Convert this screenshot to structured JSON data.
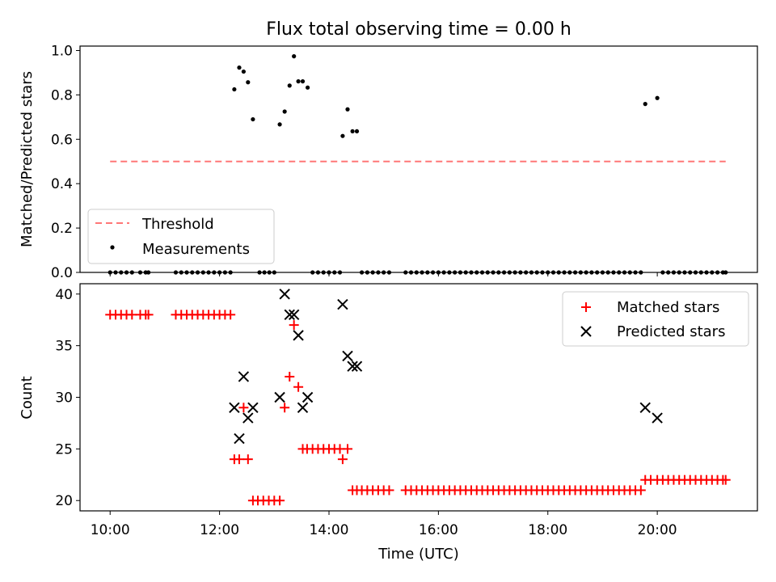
{
  "title": "Flux total observing time = 0.00 h",
  "chart_data": [
    {
      "type": "scatter",
      "ylabel": "Matched/Predicted stars",
      "xlabel": "",
      "xlim": [
        9.45,
        21.83
      ],
      "ylim": [
        0,
        1.02
      ],
      "yticks": [
        0.0,
        0.2,
        0.4,
        0.6,
        0.8,
        1.0
      ],
      "ytick_labels": [
        "0.0",
        "0.2",
        "0.4",
        "0.6",
        "0.8",
        "1.0"
      ],
      "xticks": [
        10,
        12,
        14,
        16,
        18,
        20
      ],
      "legend_position": "lower-left",
      "legend": [
        "Threshold",
        "Measurements"
      ],
      "series": [
        {
          "name": "Threshold",
          "kind": "dashed-line",
          "color": "#ff7777",
          "x": [
            10.0,
            21.25
          ],
          "y": [
            0.5,
            0.5
          ]
        },
        {
          "name": "Measurements",
          "kind": "scatter",
          "color": "#000000",
          "x": [
            10.0,
            10.1,
            10.2,
            10.3,
            10.4,
            10.55,
            10.65,
            10.7,
            11.2,
            11.3,
            11.4,
            11.5,
            11.6,
            11.7,
            11.8,
            11.9,
            12.0,
            12.1,
            12.2,
            12.27,
            12.36,
            12.44,
            12.52,
            12.61,
            12.73,
            12.82,
            12.91,
            13.0,
            13.1,
            13.19,
            13.28,
            13.36,
            13.44,
            13.52,
            13.61,
            13.7,
            13.8,
            13.9,
            14.0,
            14.1,
            14.2,
            14.25,
            14.34,
            14.43,
            14.51,
            14.6,
            14.7,
            14.8,
            14.9,
            15.0,
            15.1,
            15.4,
            15.5,
            15.6,
            15.7,
            15.8,
            15.9,
            16.0,
            16.1,
            16.2,
            16.3,
            16.4,
            16.5,
            16.6,
            16.7,
            16.8,
            16.9,
            17.0,
            17.1,
            17.2,
            17.3,
            17.4,
            17.5,
            17.6,
            17.7,
            17.8,
            17.9,
            18.0,
            18.1,
            18.2,
            18.3,
            18.4,
            18.5,
            18.6,
            18.7,
            18.8,
            18.9,
            19.0,
            19.1,
            19.2,
            19.3,
            19.4,
            19.5,
            19.6,
            19.7,
            19.78,
            20.0,
            20.1,
            20.2,
            20.3,
            20.4,
            20.5,
            20.6,
            20.7,
            20.8,
            20.9,
            21.0,
            21.1,
            21.2,
            21.25
          ],
          "y": [
            0,
            0,
            0,
            0,
            0,
            0,
            0,
            0,
            0,
            0,
            0,
            0,
            0,
            0,
            0,
            0,
            0,
            0,
            0,
            0.825,
            0.923,
            0.905,
            0.857,
            0.69,
            0,
            0,
            0,
            0,
            0.667,
            0.725,
            0.842,
            0.974,
            0.861,
            0.861,
            0.833,
            0,
            0,
            0,
            0,
            0,
            0,
            0.615,
            0.735,
            0.636,
            0.636,
            0,
            0,
            0,
            0,
            0,
            0,
            0,
            0,
            0,
            0,
            0,
            0,
            0,
            0,
            0,
            0,
            0,
            0,
            0,
            0,
            0,
            0,
            0,
            0,
            0,
            0,
            0,
            0,
            0,
            0,
            0,
            0,
            0,
            0,
            0,
            0,
            0,
            0,
            0,
            0,
            0,
            0,
            0,
            0,
            0,
            0,
            0,
            0,
            0,
            0,
            0.759,
            0.786,
            0,
            0,
            0,
            0,
            0,
            0,
            0,
            0,
            0,
            0,
            0,
            0,
            0
          ]
        }
      ]
    },
    {
      "type": "scatter",
      "ylabel": "Count",
      "xlabel": "Time (UTC)",
      "xlim": [
        9.45,
        21.83
      ],
      "ylim": [
        19,
        41
      ],
      "yticks": [
        20,
        25,
        30,
        35,
        40
      ],
      "ytick_labels": [
        "20",
        "25",
        "30",
        "35",
        "40"
      ],
      "xticks": [
        10,
        12,
        14,
        16,
        18,
        20
      ],
      "xtick_labels": [
        "10:00",
        "12:00",
        "14:00",
        "16:00",
        "18:00",
        "20:00"
      ],
      "legend_position": "upper-right",
      "legend": [
        "Matched stars",
        "Predicted stars"
      ],
      "series": [
        {
          "name": "Matched stars",
          "marker": "+",
          "color": "#ff0000",
          "x": [
            10.0,
            10.1,
            10.2,
            10.3,
            10.4,
            10.55,
            10.65,
            10.7,
            11.2,
            11.3,
            11.4,
            11.5,
            11.6,
            11.7,
            11.8,
            11.9,
            12.0,
            12.1,
            12.2,
            12.27,
            12.36,
            12.44,
            12.52,
            12.61,
            12.7,
            12.8,
            12.9,
            13.0,
            13.1,
            13.19,
            13.28,
            13.36,
            13.44,
            13.52,
            13.6,
            13.7,
            13.8,
            13.9,
            14.0,
            14.1,
            14.2,
            14.25,
            14.34,
            14.43,
            14.51,
            14.6,
            14.7,
            14.8,
            14.9,
            15.0,
            15.1,
            15.4,
            15.5,
            15.6,
            15.7,
            15.8,
            15.9,
            16.0,
            16.1,
            16.2,
            16.3,
            16.4,
            16.5,
            16.6,
            16.7,
            16.8,
            16.9,
            17.0,
            17.1,
            17.2,
            17.3,
            17.4,
            17.5,
            17.6,
            17.7,
            17.8,
            17.9,
            18.0,
            18.1,
            18.2,
            18.3,
            18.4,
            18.5,
            18.6,
            18.7,
            18.8,
            18.9,
            19.0,
            19.1,
            19.2,
            19.3,
            19.4,
            19.5,
            19.6,
            19.7,
            19.78,
            19.88,
            20.0,
            20.1,
            20.2,
            20.3,
            20.4,
            20.5,
            20.6,
            20.7,
            20.8,
            20.9,
            21.0,
            21.1,
            21.2,
            21.25
          ],
          "y": [
            38,
            38,
            38,
            38,
            38,
            38,
            38,
            38,
            38,
            38,
            38,
            38,
            38,
            38,
            38,
            38,
            38,
            38,
            38,
            24,
            24,
            29,
            24,
            20,
            20,
            20,
            20,
            20,
            20,
            29,
            32,
            37,
            31,
            25,
            25,
            25,
            25,
            25,
            25,
            25,
            25,
            24,
            25,
            21,
            21,
            21,
            21,
            21,
            21,
            21,
            21,
            21,
            21,
            21,
            21,
            21,
            21,
            21,
            21,
            21,
            21,
            21,
            21,
            21,
            21,
            21,
            21,
            21,
            21,
            21,
            21,
            21,
            21,
            21,
            21,
            21,
            21,
            21,
            21,
            21,
            21,
            21,
            21,
            21,
            21,
            21,
            21,
            21,
            21,
            21,
            21,
            21,
            21,
            21,
            21,
            22,
            22,
            22,
            22,
            22,
            22,
            22,
            22,
            22,
            22,
            22,
            22,
            22,
            22,
            22,
            22
          ]
        },
        {
          "name": "Predicted stars",
          "marker": "x",
          "color": "#000000",
          "x": [
            12.27,
            12.36,
            12.44,
            12.52,
            12.61,
            13.1,
            13.19,
            13.28,
            13.36,
            13.44,
            13.52,
            13.61,
            14.25,
            14.34,
            14.43,
            14.51,
            19.78,
            20.0
          ],
          "y": [
            29,
            26,
            32,
            28,
            29,
            30,
            40,
            38,
            38,
            36,
            29,
            30,
            39,
            34,
            33,
            33,
            29,
            28
          ]
        }
      ]
    }
  ]
}
